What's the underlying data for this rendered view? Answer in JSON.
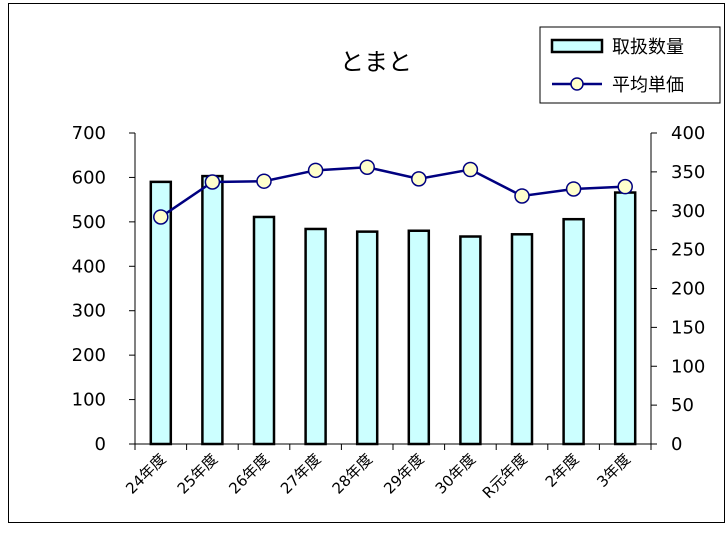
{
  "chart_data": {
    "type": "bar",
    "title": "とまと",
    "categories": [
      "24年度",
      "25年度",
      "26年度",
      "27年度",
      "28年度",
      "29年度",
      "30年度",
      "R元年度",
      "2年度",
      "3年度"
    ],
    "series": [
      {
        "name": "取扱数量",
        "type": "bar",
        "axis": "left",
        "values": [
          590,
          603,
          511,
          484,
          478,
          480,
          467,
          472,
          506,
          566
        ],
        "color": "#ccffff"
      },
      {
        "name": "平均単価",
        "type": "line",
        "axis": "right",
        "values": [
          292,
          337,
          338,
          352,
          356,
          341,
          353,
          319,
          328,
          331
        ],
        "color": "#000080",
        "marker_fill": "#ffffcc"
      }
    ],
    "y_left": {
      "min": 0,
      "max": 700,
      "step": 100
    },
    "y_right": {
      "min": 0,
      "max": 400,
      "step": 50
    },
    "legend_placement": "top-right",
    "grid": false
  }
}
